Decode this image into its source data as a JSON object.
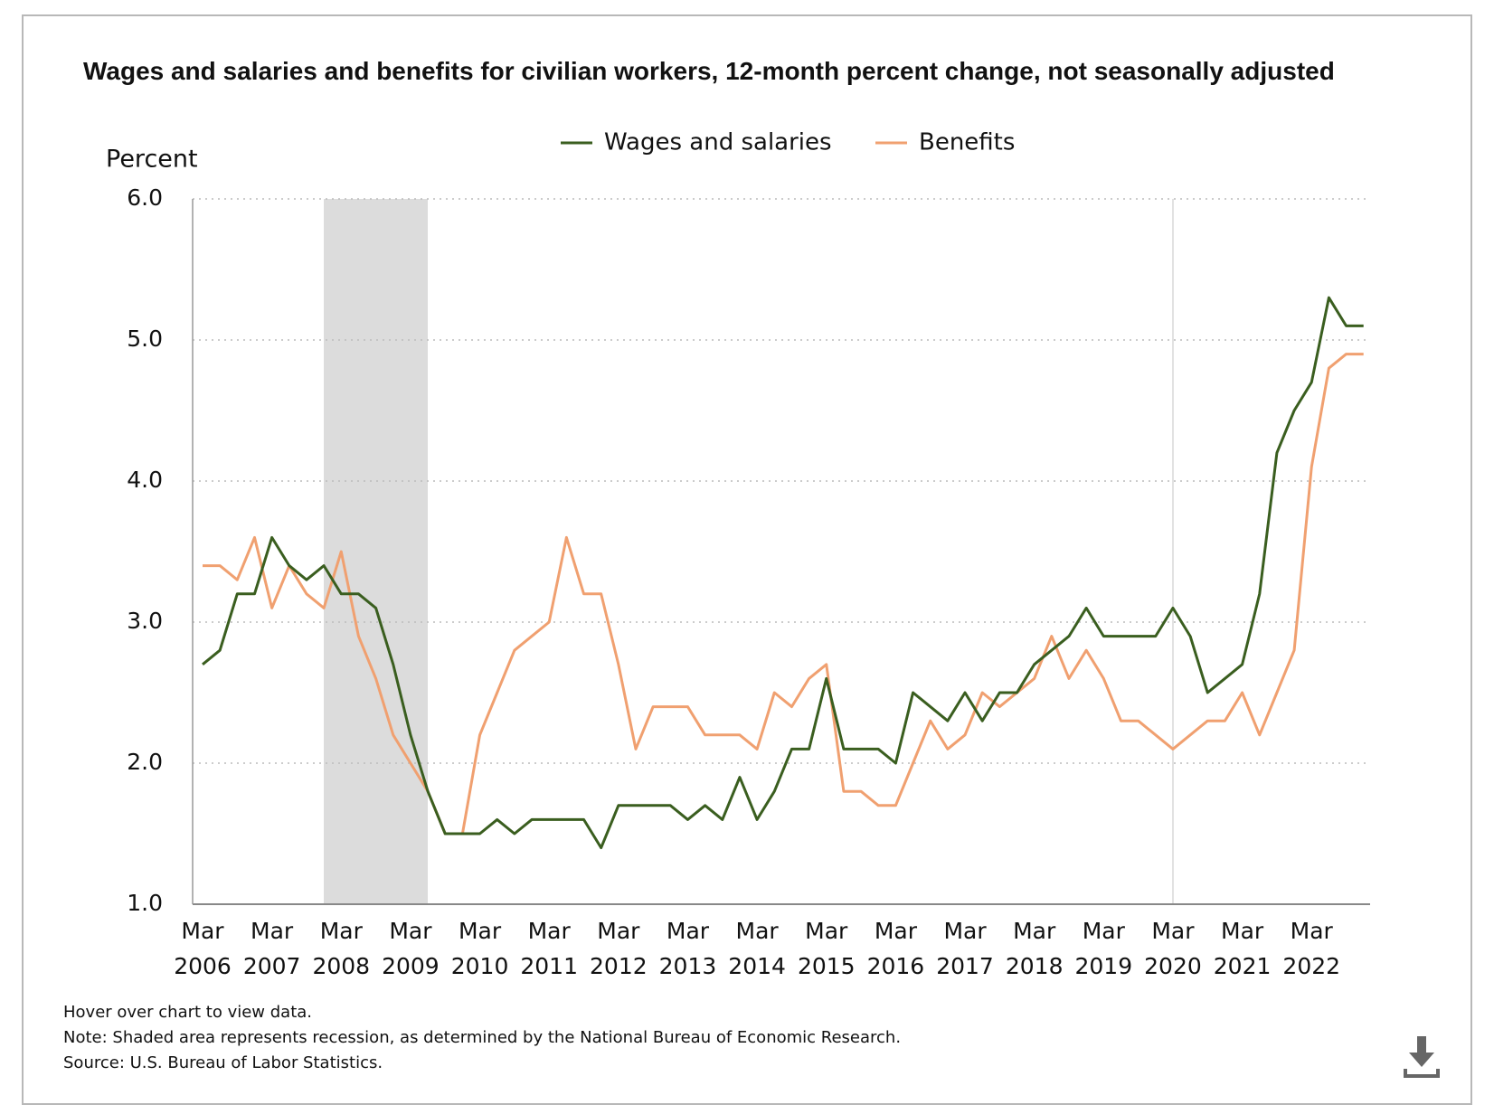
{
  "chart_data": {
    "type": "line",
    "title": "Wages and salaries and benefits for civilian workers, 12-month percent change, not seasonally adjusted",
    "y_label": "Percent",
    "notes": [
      "Hover over chart to view data.",
      "Note: Shaded area represents recession, as determined by the National Bureau of Economic Research.",
      "Source: U.S. Bureau of Labor Statistics."
    ],
    "categories": [
      "Mar 2006",
      null,
      null,
      null,
      "Mar 2007",
      null,
      null,
      null,
      "Mar 2008",
      null,
      null,
      null,
      "Mar 2009",
      null,
      null,
      null,
      "Mar 2010",
      null,
      null,
      null,
      "Mar 2011",
      null,
      null,
      null,
      "Mar 2012",
      null,
      null,
      null,
      "Mar 2013",
      null,
      null,
      null,
      "Mar 2014",
      null,
      null,
      null,
      "Mar 2015",
      null,
      null,
      null,
      "Mar 2016",
      null,
      null,
      null,
      "Mar 2017",
      null,
      null,
      null,
      "Mar 2018",
      null,
      null,
      null,
      "Mar 2019",
      null,
      null,
      null,
      "Mar 2020",
      null,
      null,
      null,
      "Mar 2021",
      null,
      null,
      null,
      "Mar 2022",
      null,
      null,
      null
    ],
    "series": [
      {
        "name": "Wages and salaries",
        "color": "#3a5e1f",
        "values": [
          2.7,
          2.8,
          3.2,
          3.2,
          3.6,
          3.4,
          3.3,
          3.4,
          3.2,
          3.2,
          3.1,
          2.7,
          2.2,
          1.8,
          1.5,
          1.5,
          1.5,
          1.6,
          1.5,
          1.6,
          1.6,
          1.6,
          1.6,
          1.4,
          1.7,
          1.7,
          1.7,
          1.7,
          1.6,
          1.7,
          1.6,
          1.9,
          1.6,
          1.8,
          2.1,
          2.1,
          2.6,
          2.1,
          2.1,
          2.1,
          2.0,
          2.5,
          2.4,
          2.3,
          2.5,
          2.3,
          2.5,
          2.5,
          2.7,
          2.8,
          2.9,
          3.1,
          2.9,
          2.9,
          2.9,
          2.9,
          3.1,
          2.9,
          2.5,
          2.6,
          2.7,
          3.2,
          4.2,
          4.5,
          4.7,
          5.3,
          5.1,
          5.1
        ]
      },
      {
        "name": "Benefits",
        "color": "#f0a070",
        "values": [
          3.4,
          3.4,
          3.3,
          3.6,
          3.1,
          3.4,
          3.2,
          3.1,
          3.5,
          2.9,
          2.6,
          2.2,
          2.0,
          1.8,
          1.5,
          1.5,
          2.2,
          2.5,
          2.8,
          2.9,
          3.0,
          3.6,
          3.2,
          3.2,
          2.7,
          2.1,
          2.4,
          2.4,
          2.4,
          2.2,
          2.2,
          2.2,
          2.1,
          2.5,
          2.4,
          2.6,
          2.7,
          1.8,
          1.8,
          1.7,
          1.7,
          2.0,
          2.3,
          2.1,
          2.2,
          2.5,
          2.4,
          2.5,
          2.6,
          2.9,
          2.6,
          2.8,
          2.6,
          2.3,
          2.3,
          2.2,
          2.1,
          2.2,
          2.3,
          2.3,
          2.5,
          2.2,
          2.5,
          2.8,
          4.1,
          4.8,
          4.9,
          4.9
        ]
      }
    ],
    "ylim": [
      1,
      6
    ],
    "yticks": [
      {
        "value": 1,
        "label": "1.0"
      },
      {
        "value": 2,
        "label": "2.0"
      },
      {
        "value": 3,
        "label": "3.0"
      },
      {
        "value": 4,
        "label": "4.0"
      },
      {
        "value": 5,
        "label": "5.0"
      },
      {
        "value": 6,
        "label": "6.0"
      }
    ],
    "grid": true
  }
}
